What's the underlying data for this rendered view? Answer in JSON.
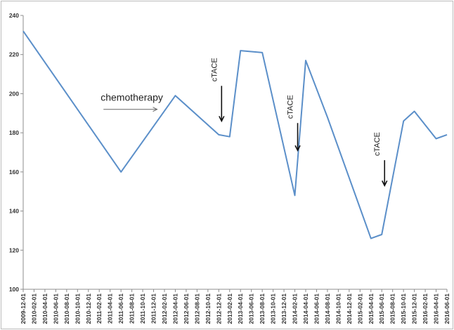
{
  "chart_data": {
    "type": "line",
    "title": "",
    "xlabel": "",
    "ylabel": "",
    "ylim": [
      100,
      240
    ],
    "yticks": [
      100,
      120,
      140,
      160,
      180,
      200,
      220,
      240
    ],
    "grid": false,
    "legend": "none",
    "line_color": "#5b8fc9",
    "x_tick_labels": [
      "2009-12-01",
      "2010-02-01",
      "2010-04-01",
      "2010-06-01",
      "2010-08-01",
      "2010-10-01",
      "2010-12-01",
      "2011-02-01",
      "2011-04-01",
      "2011-06-01",
      "2011-08-01",
      "2011-10-01",
      "2011-12-01",
      "2012-02-01",
      "2012-04-01",
      "2012-06-01",
      "2012-08-01",
      "2012-10-01",
      "2012-12-01",
      "2013-02-01",
      "2013-04-01",
      "2013-06-01",
      "2013-08-01",
      "2013-10-01",
      "2013-12-01",
      "2014-02-01",
      "2014-04-01",
      "2014-06-01",
      "2014-08-01",
      "2014-10-01",
      "2014-12-01",
      "2015-02-01",
      "2015-04-01",
      "2015-06-01",
      "2015-08-01",
      "2015-10-01",
      "2015-12-01",
      "2016-02-01",
      "2016-04-01",
      "2016-06-01"
    ],
    "series": [
      {
        "x": [
          "2009-12-01",
          "2011-06-01",
          "2012-04-01",
          "2012-12-01",
          "2013-02-01",
          "2013-04-01",
          "2013-08-01",
          "2014-02-01",
          "2014-04-01",
          "2014-08-01",
          "2015-04-01",
          "2015-06-01",
          "2015-10-01",
          "2015-12-01",
          "2016-04-01",
          "2016-06-01"
        ],
        "y": [
          232,
          160,
          199,
          179,
          178,
          222,
          221,
          148,
          217,
          188,
          126,
          128,
          186,
          191,
          177,
          179
        ]
      }
    ],
    "annotations": [
      {
        "text": "chemotherapy",
        "arrow_from": "2011-02-01",
        "arrow_to": "2011-12-01",
        "y": 192,
        "style": "horizontal"
      },
      {
        "text": "cTACE",
        "x": "2012-12-01",
        "arrow_top": 204,
        "arrow_bottom": 186,
        "style": "vertical"
      },
      {
        "text": "cTACE",
        "x": "2014-02-01",
        "arrow_top": 185,
        "arrow_bottom": 171,
        "style": "vertical"
      },
      {
        "text": "cTACE",
        "x": "2015-06-01",
        "arrow_top": 166,
        "arrow_bottom": 153,
        "style": "vertical"
      }
    ]
  }
}
